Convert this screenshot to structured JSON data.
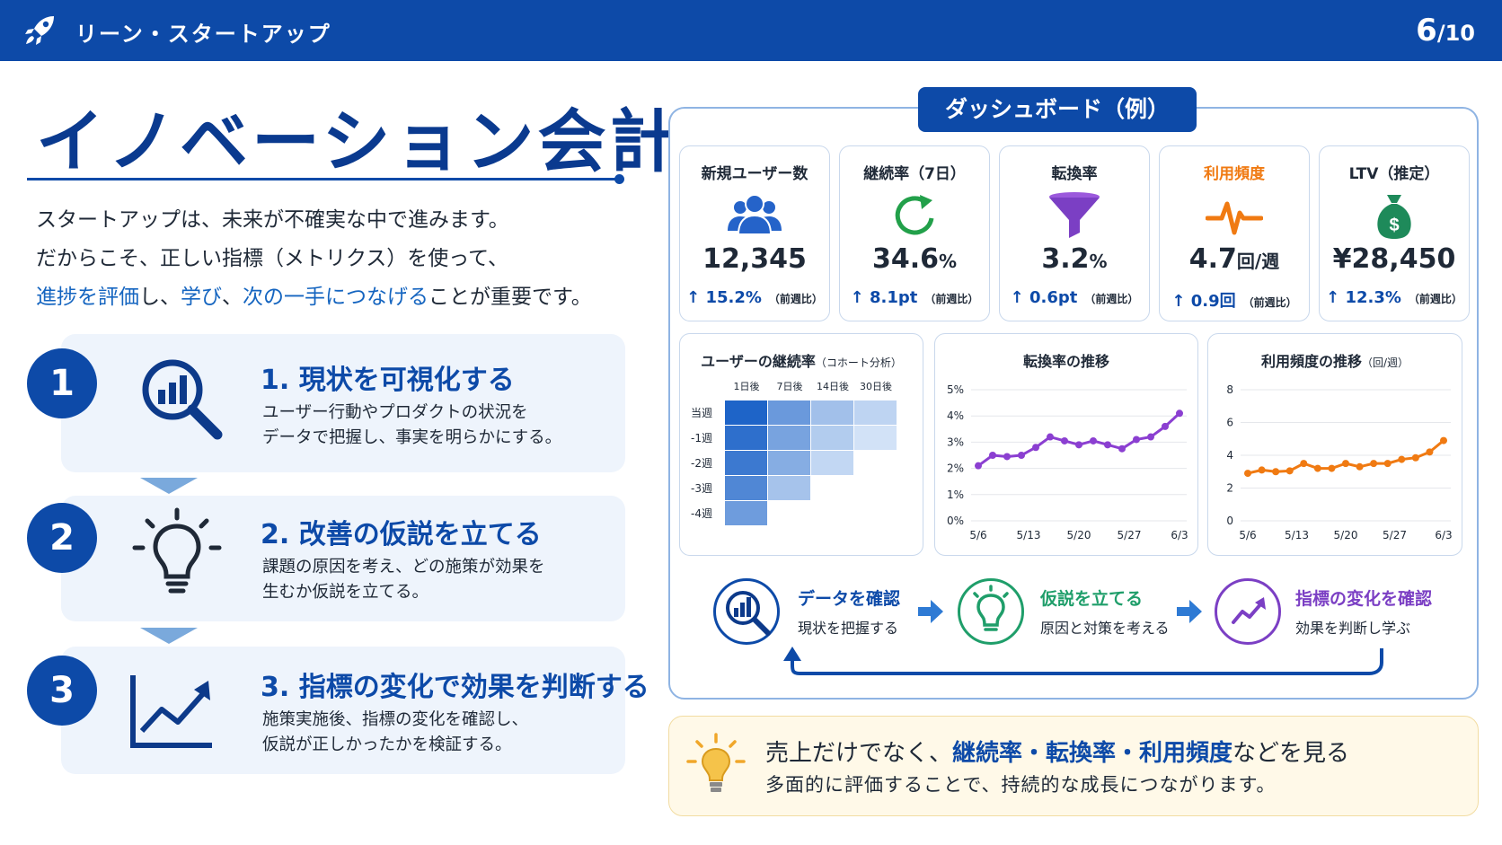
{
  "header": {
    "deck_title": "リーン・スタートアップ",
    "page_current": "6",
    "page_total": "/10",
    "icon": "rocket-icon"
  },
  "main": {
    "title": "イノベーション会計",
    "intro": {
      "line1": "スタートアップは、未来が不確実な中で進みます。",
      "line2": "だからこそ、正しい指標（メトリクス）を使って、",
      "line3_hl1": "進捗を評価",
      "line3_t1": "し、",
      "line3_hl2": "学び",
      "line3_t2": "、",
      "line3_hl3": "次の一手につなげる",
      "line3_t3": "ことが重要です。"
    },
    "steps": [
      {
        "number": "1",
        "heading": "1. 現状を可視化する",
        "line1": "ユーザー行動やプロダクトの状況を",
        "line2": "データで把握し、事実を明らかにする。",
        "icon": "magnifier-chart-icon"
      },
      {
        "number": "2",
        "heading": "2. 改善の仮説を立てる",
        "line1": "課題の原因を考え、どの施策が効果を",
        "line2": "生むか仮説を立てる。",
        "icon": "lightbulb-icon"
      },
      {
        "number": "3",
        "heading": "3. 指標の変化で効果を判断する",
        "line1": "施策実施後、指標の変化を確認し、",
        "line2": "仮説が正しかったかを検証する。",
        "icon": "trend-chart-icon"
      }
    ]
  },
  "dashboard": {
    "tab_label": "ダッシュボード（例）",
    "kpis": [
      {
        "label": "新規ユーザー数",
        "value": "12,345",
        "unit": "",
        "delta": "↑ 15.2%",
        "note": "（前週比）",
        "icon": "users-icon",
        "color": "#2563c9"
      },
      {
        "label": "継続率（7日）",
        "value": "34.6",
        "unit": "%",
        "delta": "↑ 8.1pt",
        "note": "（前週比）",
        "icon": "refresh-icon",
        "color": "#22a04a"
      },
      {
        "label": "転換率",
        "value": "3.2",
        "unit": "%",
        "delta": "↑ 0.6pt",
        "note": "（前週比）",
        "icon": "funnel-icon",
        "color": "#7b3fc4"
      },
      {
        "label": "利用頻度",
        "value": "4.7",
        "unit": "回/週",
        "delta": "↑ 0.9回",
        "note": "（前週比）",
        "icon": "pulse-icon",
        "color": "#f07a12"
      },
      {
        "label": "LTV（推定）",
        "value": "¥28,450",
        "unit": "",
        "delta": "↑ 12.3%",
        "note": "（前週比）",
        "icon": "money-bag-icon",
        "color": "#1e8a5a"
      }
    ],
    "cohort": {
      "title": "ユーザーの継続率",
      "subtitle": "（コホート分析）",
      "columns": [
        "1日後",
        "7日後",
        "14日後",
        "30日後"
      ],
      "rows": [
        "当週",
        "-1週",
        "-2週",
        "-3週",
        "-4週"
      ]
    },
    "flow": [
      {
        "title": "データを確認",
        "sub": "現状を把握する",
        "color": "#0d4aa8",
        "icon": "magnifier-chart-icon"
      },
      {
        "title": "仮説を立てる",
        "sub": "原因と対策を考える",
        "color": "#1f9e6a",
        "icon": "lightbulb-icon"
      },
      {
        "title": "指標の変化を確認",
        "sub": "効果を判断し学ぶ",
        "color": "#7b3fc4",
        "icon": "trend-up-icon"
      }
    ]
  },
  "chart_data": [
    {
      "type": "heatmap",
      "title": "ユーザーの継続率（コホート分析）",
      "categories": [
        "1日後",
        "7日後",
        "14日後",
        "30日後"
      ],
      "rows": [
        "当週",
        "-1週",
        "-2週",
        "-3週",
        "-4週"
      ],
      "values": [
        [
          1.0,
          0.62,
          0.34,
          0.2
        ],
        [
          0.92,
          0.55,
          0.26,
          0.1
        ],
        [
          0.85,
          0.48,
          0.18,
          null
        ],
        [
          0.75,
          0.32,
          null,
          null
        ],
        [
          0.6,
          null,
          null,
          null
        ]
      ]
    },
    {
      "type": "line",
      "title": "転換率の推移",
      "x_ticks": [
        "5/6",
        "5/13",
        "5/20",
        "5/27",
        "6/3"
      ],
      "y_ticks": [
        "0%",
        "1%",
        "2%",
        "3%",
        "4%",
        "5%"
      ],
      "ylim": [
        0,
        5
      ],
      "color": "#8b3fd1",
      "values": [
        2.1,
        2.5,
        2.45,
        2.5,
        2.8,
        3.2,
        3.05,
        2.9,
        3.05,
        2.9,
        2.75,
        3.1,
        3.2,
        3.6,
        4.1
      ]
    },
    {
      "type": "line",
      "title": "利用頻度の推移",
      "subtitle": "（回/週）",
      "x_ticks": [
        "5/6",
        "5/13",
        "5/20",
        "5/27",
        "6/3"
      ],
      "y_ticks": [
        "0",
        "2",
        "4",
        "6",
        "8"
      ],
      "ylim": [
        0,
        8
      ],
      "color": "#f07a12",
      "values": [
        2.9,
        3.1,
        3.0,
        3.05,
        3.5,
        3.2,
        3.2,
        3.5,
        3.3,
        3.5,
        3.5,
        3.75,
        3.85,
        4.2,
        4.9
      ]
    }
  ],
  "tip": {
    "l1_pre": "売上だけでなく、",
    "l1_hl": "継続率・転換率・利用頻度",
    "l1_post": "などを見る",
    "l2": "多面的に評価することで、持続的な成長につながります。",
    "icon": "lightbulb-icon"
  }
}
